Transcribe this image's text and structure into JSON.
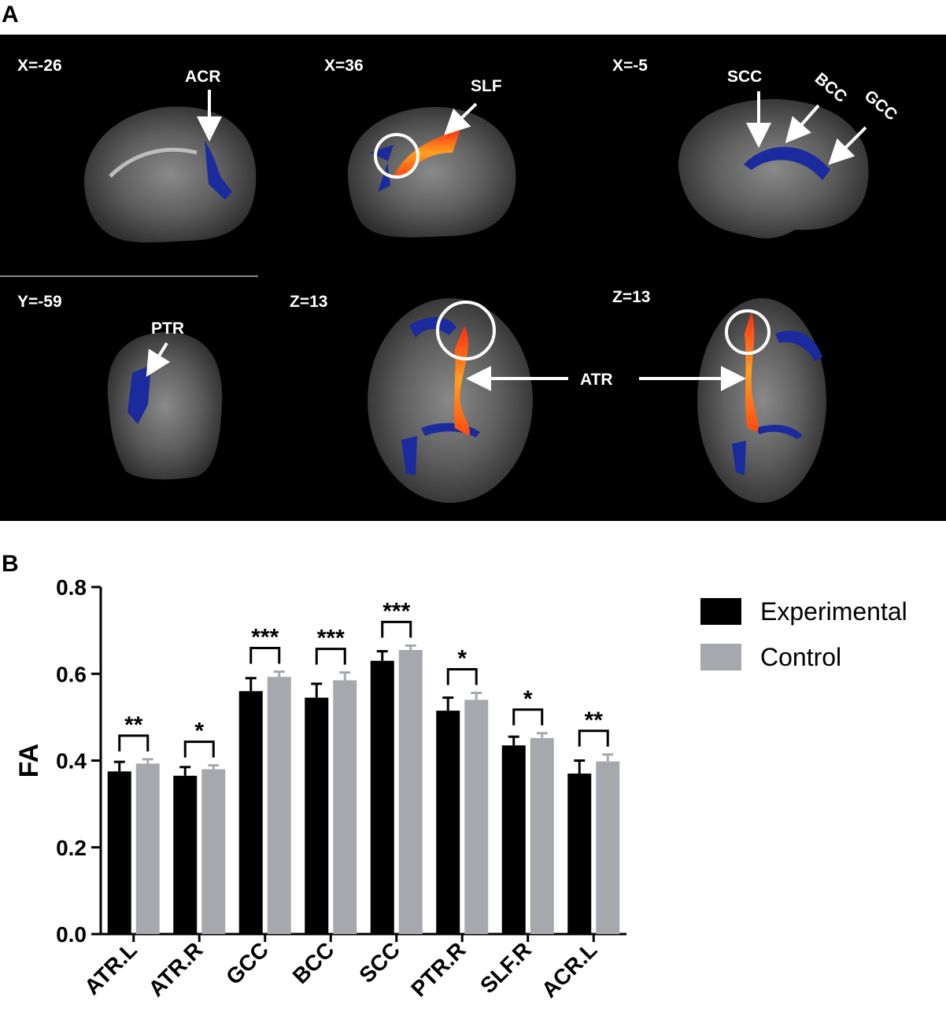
{
  "panel_a": {
    "letter": "A",
    "views": [
      {
        "coord": "X=-26",
        "tracts": [
          "ACR"
        ]
      },
      {
        "coord": "X=36",
        "tracts": [
          "SLF"
        ]
      },
      {
        "coord": "X=-5",
        "tracts": [
          "SCC",
          "BCC",
          "GCC"
        ]
      },
      {
        "coord": "Y=-59",
        "tracts": [
          "PTR"
        ]
      },
      {
        "coord": "Z=13",
        "tracts": []
      },
      {
        "coord": "Z=13",
        "tracts": []
      }
    ],
    "shared_label": "ATR",
    "colors": {
      "background": "#000000",
      "blue_cluster": "#1b2a9c",
      "red_cluster": "#ff4a10",
      "arrow": "#ffffff"
    }
  },
  "panel_b": {
    "letter": "B"
  },
  "chart_data": {
    "type": "bar",
    "categories": [
      "ATR.L",
      "ATR.R",
      "GCC",
      "BCC",
      "SCC",
      "PTR.R",
      "SLF.R",
      "ACR.L"
    ],
    "series": [
      {
        "name": "Experimental",
        "color": "#000000",
        "values": [
          0.375,
          0.365,
          0.56,
          0.545,
          0.63,
          0.515,
          0.435,
          0.37
        ],
        "errors": [
          0.022,
          0.02,
          0.03,
          0.032,
          0.022,
          0.03,
          0.02,
          0.03
        ]
      },
      {
        "name": "Control",
        "color": "#a7a8ad",
        "values": [
          0.393,
          0.38,
          0.593,
          0.585,
          0.655,
          0.54,
          0.452,
          0.398
        ],
        "errors": [
          0.01,
          0.009,
          0.012,
          0.018,
          0.01,
          0.016,
          0.011,
          0.016
        ]
      }
    ],
    "significance": [
      "**",
      "*",
      "***",
      "***",
      "***",
      "*",
      "*",
      "**"
    ],
    "ylabel": "FA",
    "ylim": [
      0,
      0.8
    ],
    "yticks": [
      "0.0",
      "0.2",
      "0.4",
      "0.6",
      "0.8"
    ],
    "grid": false,
    "legend_position": "top-right"
  }
}
